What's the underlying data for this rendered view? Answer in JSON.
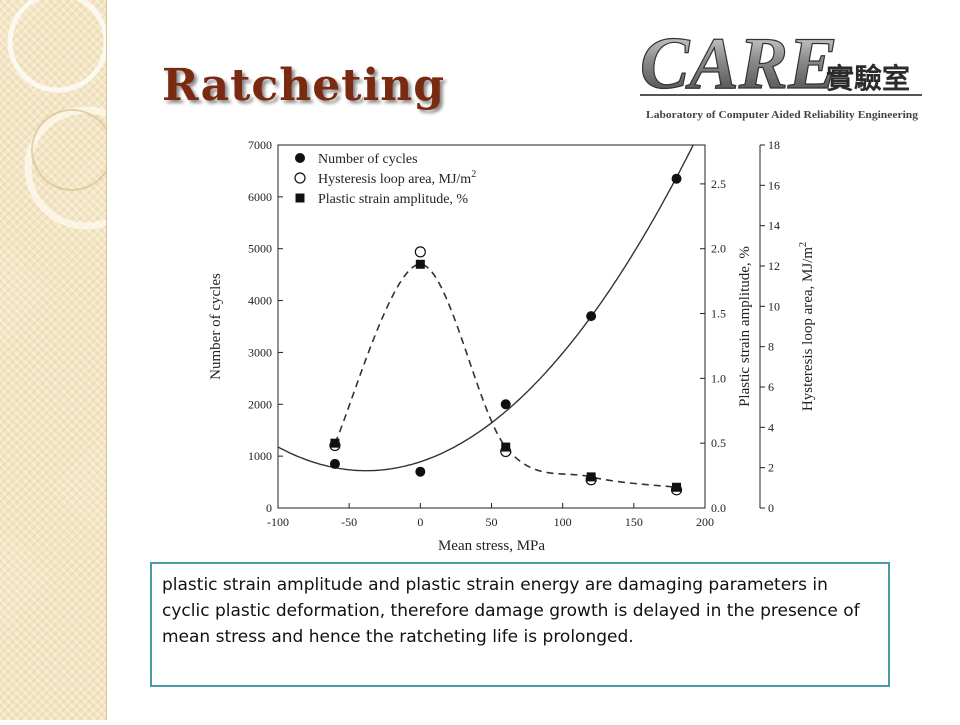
{
  "slide": {
    "title": "Ratcheting",
    "logo": {
      "main_text": "CARE",
      "chinese_text": "實驗室",
      "subtitle": "Laboratory of Computer Aided Reliability Engineering"
    },
    "body_text": "plastic strain amplitude and plastic strain energy are damaging parameters in cyclic plastic deformation, therefore damage growth is delayed in the presence of mean stress and hence the ratcheting life is prolonged."
  },
  "chart_data": {
    "type": "scatter",
    "xlabel": "Mean stress, MPa",
    "x_ticks": [
      -100,
      -50,
      0,
      50,
      100,
      150,
      200
    ],
    "xlim": [
      -100,
      200
    ],
    "left_axis": {
      "label": "Number of cycles",
      "ylim": [
        0,
        7000
      ],
      "ticks": [
        0,
        1000,
        2000,
        3000,
        4000,
        5000,
        6000,
        7000
      ]
    },
    "right_axis_1": {
      "label": "Plastic strain amplitude, %",
      "ylim": [
        0.0,
        2.8
      ],
      "ticks": [
        0.0,
        0.5,
        1.0,
        1.5,
        2.0,
        2.5
      ],
      "tick_labels": [
        "0.0",
        "0.5",
        "1.0",
        "1.5",
        "2.0",
        "2.5"
      ]
    },
    "right_axis_2": {
      "label": "Hysteresis loop area, MJ/m",
      "label_superscript": "2",
      "ylim": [
        0,
        18
      ],
      "ticks": [
        0,
        2,
        4,
        6,
        8,
        10,
        12,
        14,
        16,
        18
      ]
    },
    "series": [
      {
        "name": "Number of cycles",
        "marker": "filled-circle",
        "axis": "left_axis",
        "x": [
          -60,
          0,
          60,
          120,
          180
        ],
        "y": [
          850,
          700,
          2000,
          3700,
          6350
        ]
      },
      {
        "name": "Hysteresis loop area, MJ/m",
        "name_superscript": "2",
        "marker": "open-circle",
        "axis": "right_axis_2",
        "x": [
          -60,
          0,
          60,
          120,
          180
        ],
        "y": [
          3.1,
          12.7,
          2.8,
          1.4,
          0.9
        ]
      },
      {
        "name": "Plastic strain amplitude, %",
        "marker": "filled-square",
        "axis": "right_axis_1",
        "x": [
          -60,
          0,
          60,
          120,
          180
        ],
        "y": [
          0.5,
          1.88,
          0.47,
          0.24,
          0.16
        ]
      }
    ],
    "legend_position": "top-left",
    "colors": {
      "markers": "#111111",
      "curves": "#333333"
    }
  }
}
